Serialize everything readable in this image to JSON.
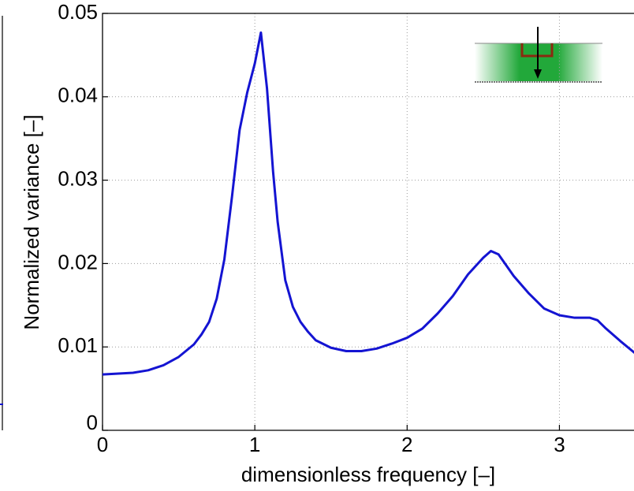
{
  "chart_data": {
    "type": "line",
    "xlabel": "dimensionless frequency [–]",
    "ylabel": "Normalized variance [–]",
    "x": [
      0,
      0.2,
      0.3,
      0.4,
      0.5,
      0.6,
      0.65,
      0.7,
      0.75,
      0.8,
      0.85,
      0.9,
      0.95,
      1.0,
      1.04,
      1.08,
      1.12,
      1.15,
      1.2,
      1.25,
      1.3,
      1.35,
      1.4,
      1.5,
      1.6,
      1.7,
      1.8,
      1.9,
      2.0,
      2.1,
      2.2,
      2.3,
      2.4,
      2.5,
      2.55,
      2.6,
      2.7,
      2.8,
      2.9,
      3.0,
      3.1,
      3.2,
      3.25,
      3.3,
      3.4,
      3.5
    ],
    "series": [
      {
        "color": "#1414d2",
        "values": [
          0.0067,
          0.0069,
          0.0072,
          0.0078,
          0.0088,
          0.0103,
          0.0115,
          0.013,
          0.0158,
          0.0205,
          0.028,
          0.036,
          0.0405,
          0.044,
          0.0477,
          0.041,
          0.031,
          0.025,
          0.018,
          0.0148,
          0.013,
          0.0118,
          0.0108,
          0.0099,
          0.0095,
          0.0095,
          0.0098,
          0.0104,
          0.0111,
          0.0122,
          0.014,
          0.0161,
          0.0187,
          0.0207,
          0.0215,
          0.0211,
          0.0185,
          0.0164,
          0.0146,
          0.0138,
          0.0135,
          0.0135,
          0.0132,
          0.0123,
          0.0107,
          0.0092
        ]
      }
    ],
    "xlim": [
      0,
      3.5
    ],
    "ylim": [
      0,
      0.05
    ],
    "xticks": [
      0,
      1,
      2,
      3
    ],
    "yticks": [
      0,
      0.01,
      0.02,
      0.03,
      0.04,
      0.05
    ],
    "grid": true
  }
}
